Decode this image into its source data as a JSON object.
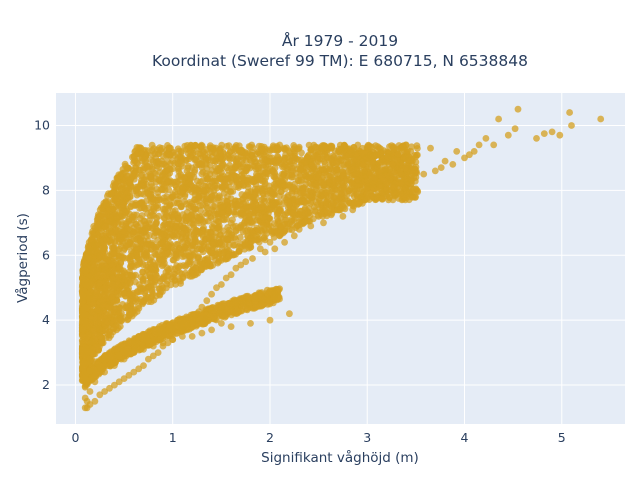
{
  "chart_data": {
    "type": "scatter",
    "title": [
      "År 1979 - 2019",
      "Koordinat (Sweref 99 TM): E 680715, N 6538848"
    ],
    "xlabel": "Signifikant våghöjd (m)",
    "ylabel": "Vågperiod (s)",
    "xlim": [
      -0.2,
      5.65
    ],
    "ylim": [
      0.8,
      11.0
    ],
    "xticks": [
      "0",
      "1",
      "2",
      "3",
      "4",
      "5"
    ],
    "yticks": [
      "2",
      "4",
      "6",
      "8",
      "10"
    ],
    "grid": true,
    "legend": "none",
    "colors": {
      "point": "#d4a020",
      "plot_bg": "#e5ecf6",
      "grid": "#ffffff",
      "text": "#2a3f5f"
    },
    "marker_opacity": 0.75,
    "series": [
      {
        "x": [
          5.4,
          5.1,
          5.08,
          4.98,
          4.9,
          4.82,
          4.74,
          4.55,
          4.52,
          4.45,
          4.35,
          4.3,
          4.22,
          4.15,
          4.1,
          4.05,
          4.0,
          3.92,
          3.88,
          3.8,
          3.76,
          3.7,
          3.65,
          3.58,
          3.5,
          3.45,
          3.4,
          3.35,
          3.28,
          3.25,
          3.2,
          3.1,
          3.05,
          3.0,
          2.95,
          2.9,
          2.85,
          2.8,
          2.75,
          2.7,
          2.6,
          2.55,
          2.5,
          2.42,
          2.35,
          2.3,
          2.25,
          2.2,
          2.15,
          2.1,
          2.05,
          2.0,
          1.95,
          1.9,
          1.82,
          1.75,
          1.7,
          1.65,
          1.6,
          1.55,
          1.5,
          1.45,
          1.4,
          1.35,
          1.3,
          1.25,
          1.2,
          1.15,
          1.1,
          1.05,
          1.0,
          0.95,
          0.9,
          0.85,
          0.8,
          0.75,
          0.7,
          0.65,
          0.6,
          0.55,
          0.5,
          0.45,
          0.4,
          0.35,
          0.3,
          0.25,
          0.2,
          0.15,
          0.12,
          0.1,
          0.08,
          2.2,
          2.0,
          1.8,
          1.6,
          1.5,
          1.4,
          1.3,
          1.2,
          1.1,
          1.0,
          0.9,
          0.8,
          0.7,
          0.6,
          0.5,
          0.4,
          0.3,
          0.2,
          0.15,
          0.12,
          0.1
        ],
        "y": [
          10.2,
          10.0,
          10.4,
          9.7,
          9.8,
          9.75,
          9.6,
          10.5,
          9.9,
          9.7,
          10.2,
          9.4,
          9.6,
          9.4,
          9.2,
          9.1,
          9.0,
          9.2,
          8.8,
          8.9,
          8.7,
          8.6,
          9.3,
          8.5,
          8.4,
          8.3,
          9.4,
          8.2,
          8.1,
          8.0,
          8.9,
          8.0,
          7.8,
          7.9,
          7.6,
          7.8,
          7.4,
          7.6,
          7.2,
          7.4,
          7.3,
          7.0,
          7.2,
          6.9,
          7.0,
          6.8,
          6.6,
          6.8,
          6.4,
          6.6,
          6.2,
          6.4,
          6.1,
          6.2,
          5.9,
          5.8,
          5.7,
          5.6,
          5.4,
          5.3,
          5.1,
          5.0,
          4.8,
          4.6,
          4.4,
          4.2,
          4.0,
          3.8,
          3.7,
          3.6,
          3.4,
          3.3,
          3.2,
          3.0,
          2.9,
          2.8,
          2.6,
          2.5,
          2.4,
          2.3,
          2.2,
          2.1,
          2.0,
          1.9,
          1.8,
          1.7,
          1.5,
          1.4,
          1.3,
          1.6,
          2.5,
          4.2,
          4.0,
          3.9,
          3.8,
          3.9,
          3.7,
          3.6,
          3.5,
          3.5,
          3.4,
          3.3,
          3.2,
          3.1,
          3.0,
          2.8,
          2.6,
          2.4,
          2.1,
          1.8,
          1.5,
          1.3
        ]
      }
    ]
  }
}
